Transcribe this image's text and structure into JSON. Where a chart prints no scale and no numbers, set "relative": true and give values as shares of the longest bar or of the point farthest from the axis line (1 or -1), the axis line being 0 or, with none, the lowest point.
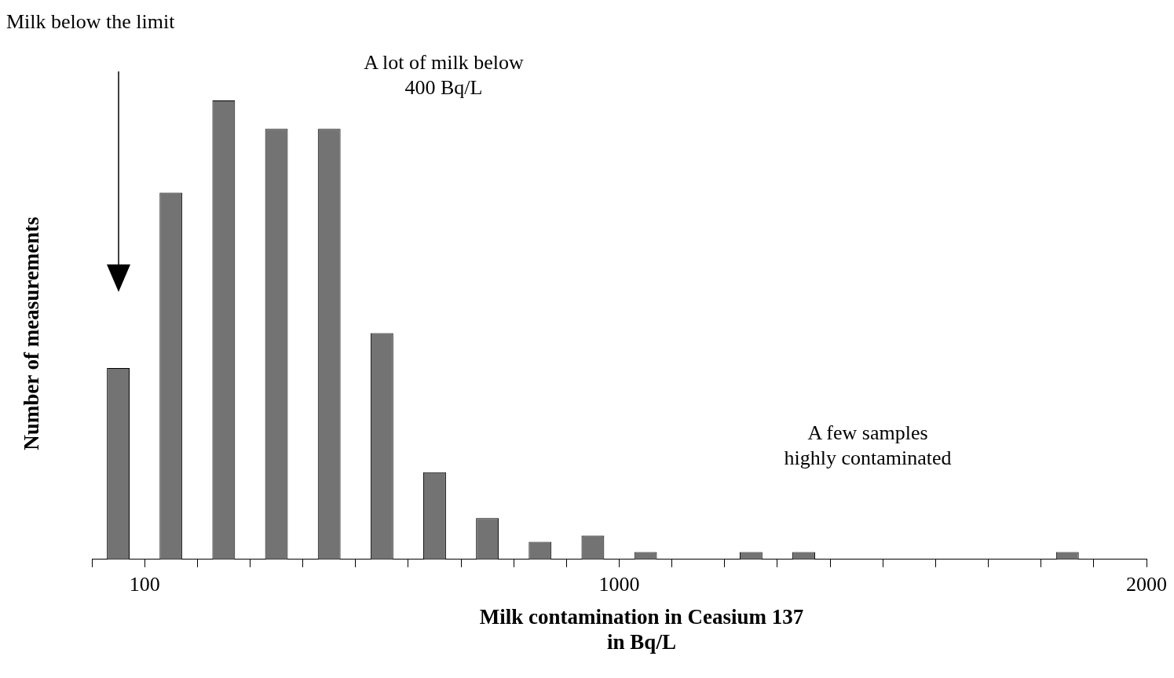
{
  "chart_data": {
    "type": "bar",
    "xlabel": "Milk contamination in Ceasium 137\nin Bq/L",
    "ylabel": "Number of measurements",
    "annotations": [
      "Milk below the limit",
      "A lot of milk below\n400 Bq/L",
      "A few samples\nhighly contaminated"
    ],
    "x": [
      50,
      150,
      250,
      350,
      450,
      550,
      650,
      750,
      850,
      950,
      1050,
      1150,
      1250,
      1350,
      1450,
      1550,
      1650,
      1750,
      1850,
      1950
    ],
    "values": [
      0.417,
      0.799,
      1,
      0.938,
      0.938,
      0.493,
      0.19,
      0.09,
      0.038,
      0.052,
      0.016,
      0,
      0.016,
      0.016,
      0,
      0,
      0,
      0,
      0.016,
      0
    ],
    "color": "#737373",
    "relative": true,
    "xlim": [
      0,
      2000
    ],
    "xticks": [
      {
        "value": 0,
        "label": null
      },
      100,
      {
        "value": 200,
        "label": null
      },
      {
        "value": 300,
        "label": null
      },
      {
        "value": 400,
        "label": null
      },
      {
        "value": 500,
        "label": null
      },
      {
        "value": 600,
        "label": null
      },
      {
        "value": 700,
        "label": null
      },
      {
        "value": 800,
        "label": null
      },
      {
        "value": 900,
        "label": null
      },
      1000,
      {
        "value": 1100,
        "label": null
      },
      {
        "value": 1200,
        "label": null
      },
      {
        "value": 1300,
        "label": null
      },
      {
        "value": 1400,
        "label": null
      },
      {
        "value": 1500,
        "label": null
      },
      {
        "value": 1600,
        "label": null
      },
      {
        "value": 1700,
        "label": null
      },
      {
        "value": 1800,
        "label": null
      },
      {
        "value": 1900,
        "label": null
      },
      2000
    ]
  }
}
